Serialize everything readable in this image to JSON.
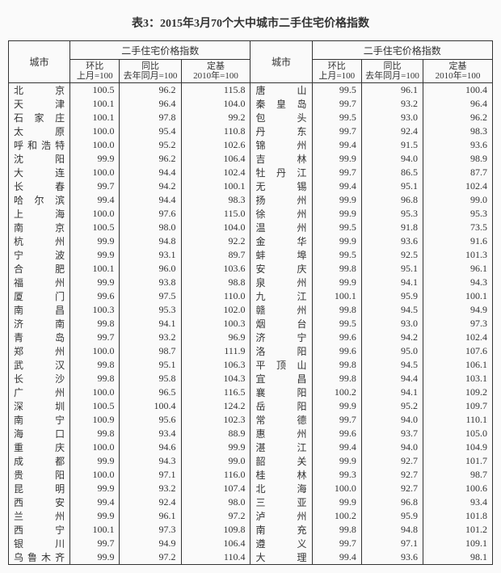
{
  "title": "表3：2015年3月70个大中城市二手住宅价格指数",
  "group_header": "二手住宅价格指数",
  "city_header": "城市",
  "sub_headers": {
    "hb": "环比",
    "hb2": "上月=100",
    "tb": "同比",
    "tb2": "去年同月=100",
    "dj": "定基",
    "dj2": "2010年=100"
  },
  "rows": [
    {
      "l": {
        "city": "北京",
        "a": "100.5",
        "b": "96.2",
        "c": "115.8"
      },
      "r": {
        "city": "唐山",
        "a": "99.5",
        "b": "96.1",
        "c": "100.4"
      }
    },
    {
      "l": {
        "city": "天津",
        "a": "100.1",
        "b": "96.4",
        "c": "104.0"
      },
      "r": {
        "city": "秦皇岛",
        "a": "99.7",
        "b": "93.2",
        "c": "96.4"
      }
    },
    {
      "l": {
        "city": "石家庄",
        "a": "100.1",
        "b": "97.8",
        "c": "99.2"
      },
      "r": {
        "city": "包头",
        "a": "99.5",
        "b": "93.0",
        "c": "96.2"
      }
    },
    {
      "l": {
        "city": "太原",
        "a": "100.0",
        "b": "95.4",
        "c": "110.8"
      },
      "r": {
        "city": "丹东",
        "a": "99.7",
        "b": "92.4",
        "c": "98.3"
      }
    },
    {
      "l": {
        "city": "呼和浩特",
        "a": "100.0",
        "b": "95.2",
        "c": "102.6"
      },
      "r": {
        "city": "锦州",
        "a": "99.4",
        "b": "91.5",
        "c": "93.6"
      }
    },
    {
      "l": {
        "city": "沈阳",
        "a": "99.9",
        "b": "96.2",
        "c": "106.4"
      },
      "r": {
        "city": "吉林",
        "a": "99.9",
        "b": "94.0",
        "c": "98.9"
      }
    },
    {
      "l": {
        "city": "大连",
        "a": "100.0",
        "b": "94.4",
        "c": "102.4"
      },
      "r": {
        "city": "牡丹江",
        "a": "99.7",
        "b": "86.5",
        "c": "87.7"
      }
    },
    {
      "l": {
        "city": "长春",
        "a": "99.7",
        "b": "94.2",
        "c": "100.1"
      },
      "r": {
        "city": "无锡",
        "a": "99.4",
        "b": "95.1",
        "c": "102.4"
      }
    },
    {
      "l": {
        "city": "哈尔滨",
        "a": "99.4",
        "b": "94.4",
        "c": "98.3"
      },
      "r": {
        "city": "扬州",
        "a": "99.9",
        "b": "96.8",
        "c": "99.0"
      }
    },
    {
      "l": {
        "city": "上海",
        "a": "100.0",
        "b": "97.6",
        "c": "115.0"
      },
      "r": {
        "city": "徐州",
        "a": "99.9",
        "b": "95.3",
        "c": "95.3"
      }
    },
    {
      "l": {
        "city": "南京",
        "a": "100.5",
        "b": "98.0",
        "c": "104.0"
      },
      "r": {
        "city": "温州",
        "a": "99.5",
        "b": "91.8",
        "c": "73.5"
      }
    },
    {
      "l": {
        "city": "杭州",
        "a": "99.9",
        "b": "94.8",
        "c": "92.2"
      },
      "r": {
        "city": "金华",
        "a": "99.9",
        "b": "93.6",
        "c": "91.6"
      }
    },
    {
      "l": {
        "city": "宁波",
        "a": "99.9",
        "b": "93.1",
        "c": "89.7"
      },
      "r": {
        "city": "蚌埠",
        "a": "99.5",
        "b": "92.5",
        "c": "101.3"
      }
    },
    {
      "l": {
        "city": "合肥",
        "a": "100.1",
        "b": "96.0",
        "c": "103.6"
      },
      "r": {
        "city": "安庆",
        "a": "99.8",
        "b": "95.1",
        "c": "96.1"
      }
    },
    {
      "l": {
        "city": "福州",
        "a": "99.9",
        "b": "93.8",
        "c": "98.8"
      },
      "r": {
        "city": "泉州",
        "a": "99.9",
        "b": "94.1",
        "c": "94.3"
      }
    },
    {
      "l": {
        "city": "厦门",
        "a": "99.6",
        "b": "97.5",
        "c": "110.0"
      },
      "r": {
        "city": "九江",
        "a": "100.1",
        "b": "95.9",
        "c": "100.1"
      }
    },
    {
      "l": {
        "city": "南昌",
        "a": "100.3",
        "b": "95.3",
        "c": "102.0"
      },
      "r": {
        "city": "赣州",
        "a": "99.8",
        "b": "94.5",
        "c": "94.9"
      }
    },
    {
      "l": {
        "city": "济南",
        "a": "99.8",
        "b": "94.1",
        "c": "100.3"
      },
      "r": {
        "city": "烟台",
        "a": "99.5",
        "b": "93.0",
        "c": "97.3"
      }
    },
    {
      "l": {
        "city": "青岛",
        "a": "99.7",
        "b": "93.2",
        "c": "96.9"
      },
      "r": {
        "city": "济宁",
        "a": "99.6",
        "b": "94.2",
        "c": "102.4"
      }
    },
    {
      "l": {
        "city": "郑州",
        "a": "100.0",
        "b": "98.7",
        "c": "111.9"
      },
      "r": {
        "city": "洛阳",
        "a": "99.6",
        "b": "95.0",
        "c": "107.6"
      }
    },
    {
      "l": {
        "city": "武汉",
        "a": "99.8",
        "b": "95.1",
        "c": "106.3"
      },
      "r": {
        "city": "平顶山",
        "a": "99.8",
        "b": "94.5",
        "c": "106.1"
      }
    },
    {
      "l": {
        "city": "长沙",
        "a": "99.8",
        "b": "95.8",
        "c": "104.3"
      },
      "r": {
        "city": "宜昌",
        "a": "99.8",
        "b": "94.4",
        "c": "103.1"
      }
    },
    {
      "l": {
        "city": "广州",
        "a": "100.0",
        "b": "96.5",
        "c": "116.5"
      },
      "r": {
        "city": "襄阳",
        "a": "100.2",
        "b": "94.1",
        "c": "109.2"
      }
    },
    {
      "l": {
        "city": "深圳",
        "a": "100.5",
        "b": "100.4",
        "c": "124.2"
      },
      "r": {
        "city": "岳阳",
        "a": "99.9",
        "b": "95.2",
        "c": "109.7"
      }
    },
    {
      "l": {
        "city": "南宁",
        "a": "100.9",
        "b": "95.6",
        "c": "102.3"
      },
      "r": {
        "city": "常德",
        "a": "99.7",
        "b": "94.0",
        "c": "110.1"
      }
    },
    {
      "l": {
        "city": "海口",
        "a": "99.8",
        "b": "93.4",
        "c": "88.9"
      },
      "r": {
        "city": "惠州",
        "a": "99.6",
        "b": "93.7",
        "c": "105.0"
      }
    },
    {
      "l": {
        "city": "重庆",
        "a": "100.0",
        "b": "94.6",
        "c": "99.9"
      },
      "r": {
        "city": "湛江",
        "a": "99.4",
        "b": "94.0",
        "c": "104.9"
      }
    },
    {
      "l": {
        "city": "成都",
        "a": "99.9",
        "b": "94.3",
        "c": "99.0"
      },
      "r": {
        "city": "韶关",
        "a": "99.9",
        "b": "92.7",
        "c": "101.7"
      }
    },
    {
      "l": {
        "city": "贵阳",
        "a": "100.0",
        "b": "97.1",
        "c": "116.0"
      },
      "r": {
        "city": "桂林",
        "a": "99.3",
        "b": "92.7",
        "c": "98.7"
      }
    },
    {
      "l": {
        "city": "昆明",
        "a": "99.9",
        "b": "93.2",
        "c": "107.4"
      },
      "r": {
        "city": "北海",
        "a": "100.0",
        "b": "92.7",
        "c": "100.6"
      }
    },
    {
      "l": {
        "city": "西安",
        "a": "99.4",
        "b": "92.4",
        "c": "98.0"
      },
      "r": {
        "city": "三亚",
        "a": "99.9",
        "b": "96.8",
        "c": "93.4"
      }
    },
    {
      "l": {
        "city": "兰州",
        "a": "99.9",
        "b": "96.1",
        "c": "97.2"
      },
      "r": {
        "city": "泸州",
        "a": "100.2",
        "b": "95.9",
        "c": "101.8"
      }
    },
    {
      "l": {
        "city": "西宁",
        "a": "100.1",
        "b": "97.3",
        "c": "109.8"
      },
      "r": {
        "city": "南充",
        "a": "99.8",
        "b": "94.8",
        "c": "101.2"
      }
    },
    {
      "l": {
        "city": "银川",
        "a": "99.7",
        "b": "94.9",
        "c": "106.4"
      },
      "r": {
        "city": "遵义",
        "a": "99.7",
        "b": "97.1",
        "c": "109.1"
      }
    },
    {
      "l": {
        "city": "乌鲁木齐",
        "a": "99.9",
        "b": "97.2",
        "c": "110.4"
      },
      "r": {
        "city": "大理",
        "a": "99.4",
        "b": "93.6",
        "c": "98.1"
      }
    }
  ]
}
